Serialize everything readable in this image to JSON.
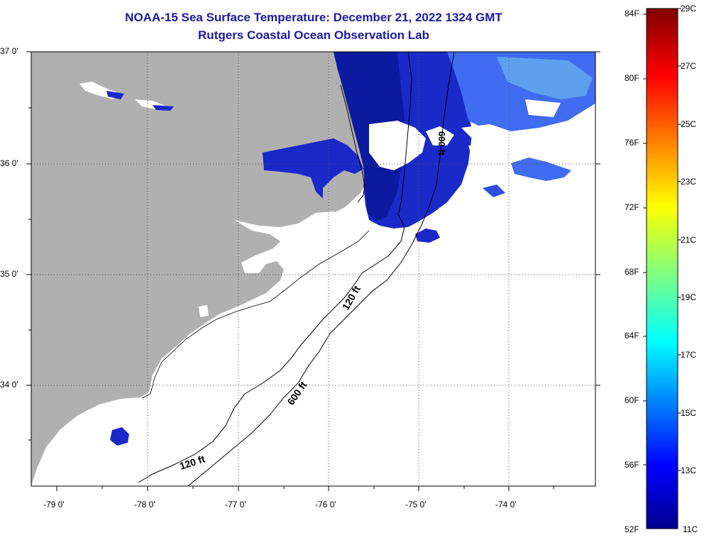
{
  "header": {
    "title": "NOAA-15 Sea Surface Temperature:  December 21, 2022 1324 GMT",
    "subtitle": "Rutgers Coastal Ocean Observation Lab"
  },
  "axes": {
    "lat_labels": [
      "37 0'",
      "36 0'",
      "35 0'",
      "34 0'"
    ],
    "lon_labels": [
      "-79 0'",
      "-78 0'",
      "-77 0'",
      "-76 0'",
      "-75 0'",
      "-74 0'"
    ]
  },
  "contours": {
    "label_120_north": "120 ft",
    "label_600": "600 ft",
    "label_120_south": "120 ft",
    "label_600_north": "600 ft"
  },
  "colorbar": {
    "f_labels": [
      "84F",
      "80F",
      "76F",
      "72F",
      "68F",
      "64F",
      "60F",
      "56F",
      "52F"
    ],
    "c_labels": [
      "29C",
      "27C",
      "25C",
      "23C",
      "21C",
      "19C",
      "17C",
      "15C",
      "13C",
      "11C"
    ]
  },
  "colors": {
    "land": "#b0b0b0",
    "cold_water": "#1a28c8",
    "frame": "#000000"
  }
}
